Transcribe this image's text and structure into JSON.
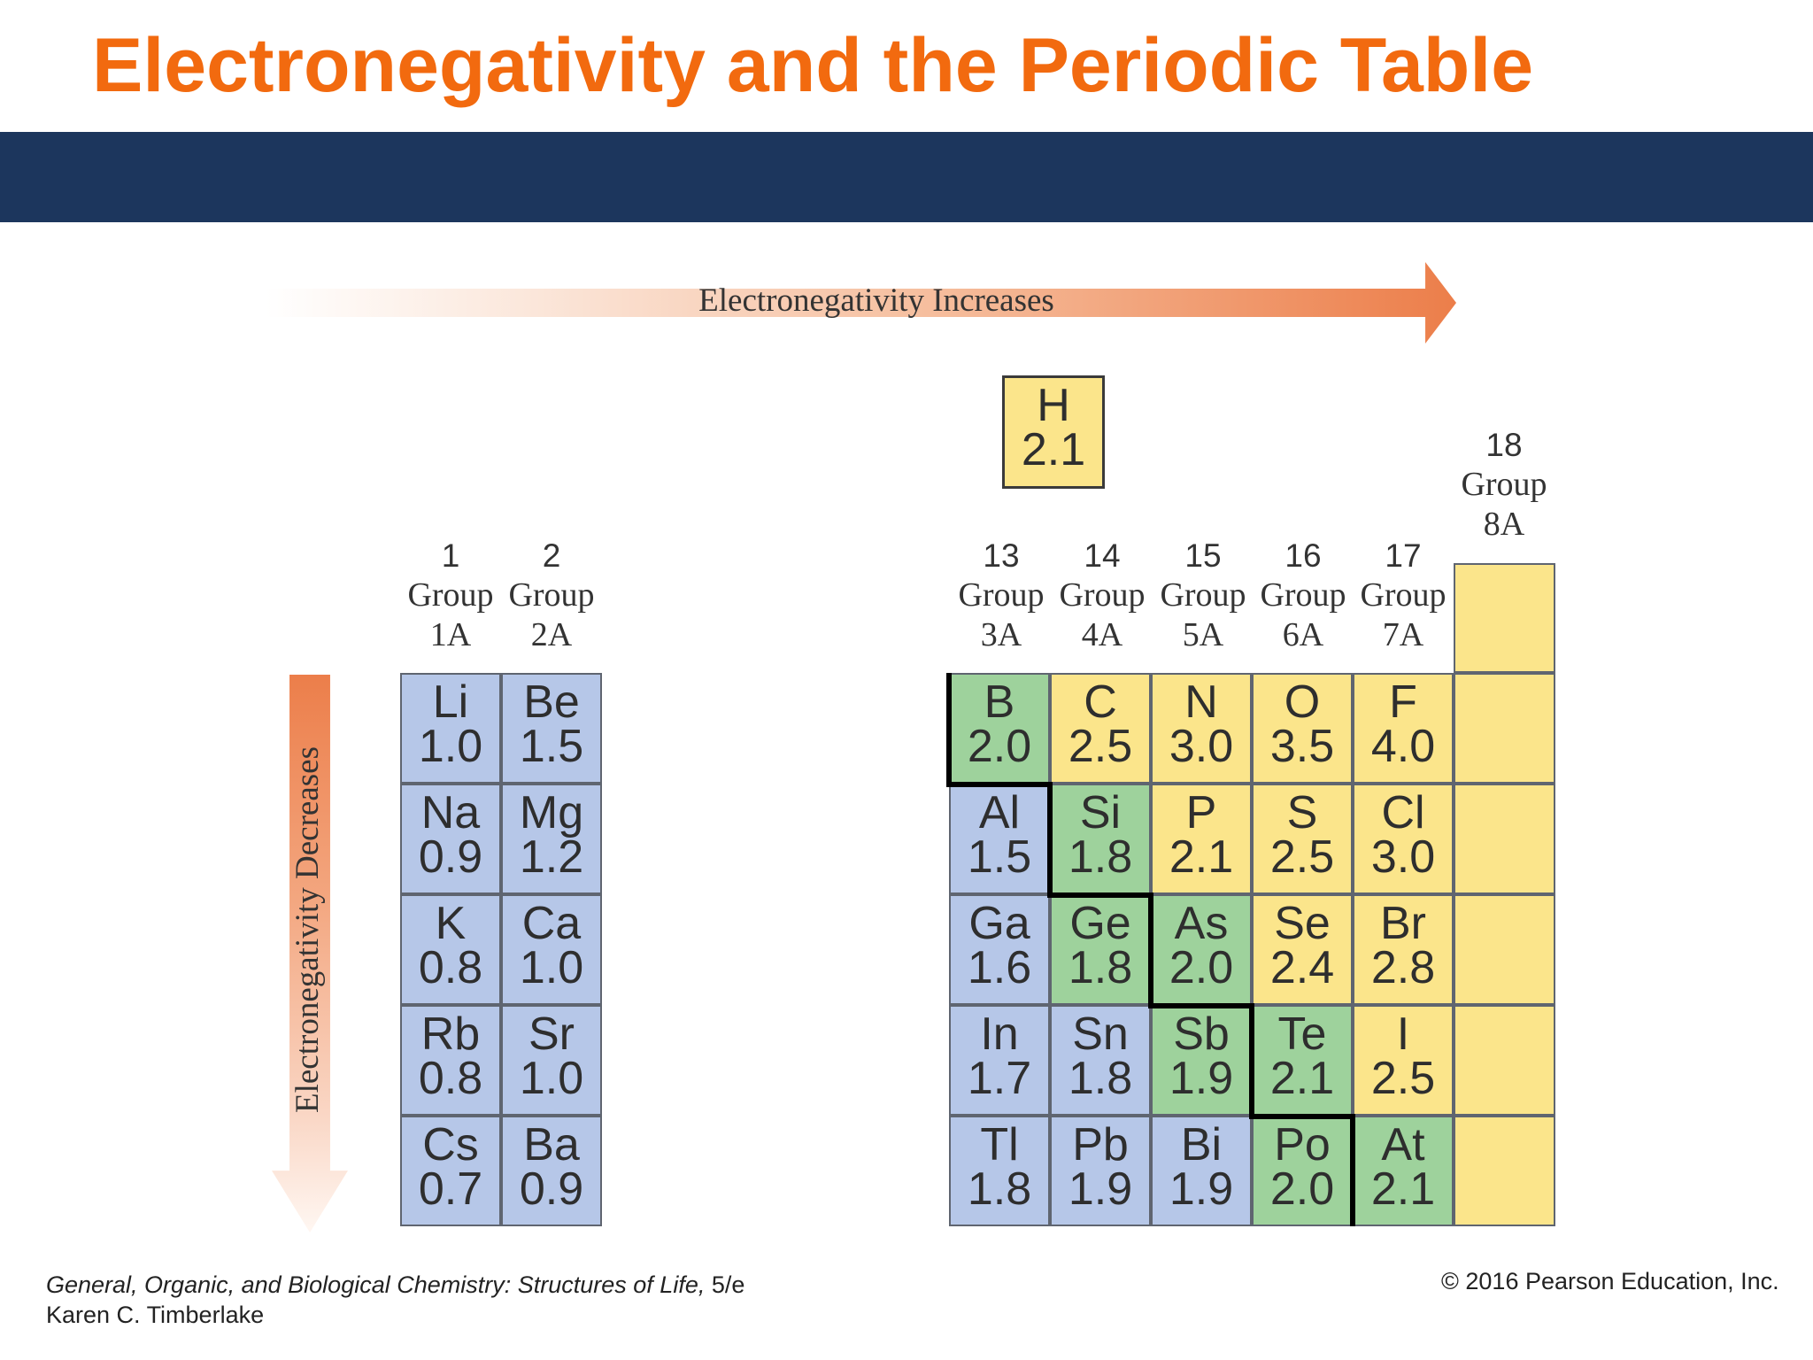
{
  "slide": {
    "title": "Electronegativity and the Periodic Table",
    "accent_color": "#f26a0f",
    "band_color": "#1c365d"
  },
  "arrows": {
    "horizontal_label": "Electronegativity Increases",
    "vertical_label": "Electronegativity Decreases"
  },
  "groups": {
    "g1": {
      "number": "1",
      "word": "Group",
      "label": "1A"
    },
    "g2": {
      "number": "2",
      "word": "Group",
      "label": "2A"
    },
    "g13": {
      "number": "13",
      "word": "Group",
      "label": "3A"
    },
    "g14": {
      "number": "14",
      "word": "Group",
      "label": "4A"
    },
    "g15": {
      "number": "15",
      "word": "Group",
      "label": "5A"
    },
    "g16": {
      "number": "16",
      "word": "Group",
      "label": "6A"
    },
    "g17": {
      "number": "17",
      "word": "Group",
      "label": "7A"
    },
    "g18": {
      "number": "18",
      "word": "Group",
      "label": "8A"
    }
  },
  "cell_colors": {
    "metal": "#b6c7e8",
    "metalloid": "#9ed29c",
    "nonmetal": "#fbe58b"
  },
  "elements": {
    "H": {
      "symbol": "H",
      "en": "2.1",
      "category": "nonmetal"
    },
    "Li": {
      "symbol": "Li",
      "en": "1.0",
      "category": "metal"
    },
    "Be": {
      "symbol": "Be",
      "en": "1.5",
      "category": "metal"
    },
    "Na": {
      "symbol": "Na",
      "en": "0.9",
      "category": "metal"
    },
    "Mg": {
      "symbol": "Mg",
      "en": "1.2",
      "category": "metal"
    },
    "K": {
      "symbol": "K",
      "en": "0.8",
      "category": "metal"
    },
    "Ca": {
      "symbol": "Ca",
      "en": "1.0",
      "category": "metal"
    },
    "Rb": {
      "symbol": "Rb",
      "en": "0.8",
      "category": "metal"
    },
    "Sr": {
      "symbol": "Sr",
      "en": "1.0",
      "category": "metal"
    },
    "Cs": {
      "symbol": "Cs",
      "en": "0.7",
      "category": "metal"
    },
    "Ba": {
      "symbol": "Ba",
      "en": "0.9",
      "category": "metal"
    },
    "B": {
      "symbol": "B",
      "en": "2.0",
      "category": "metalloid"
    },
    "C": {
      "symbol": "C",
      "en": "2.5",
      "category": "nonmetal"
    },
    "N": {
      "symbol": "N",
      "en": "3.0",
      "category": "nonmetal"
    },
    "O": {
      "symbol": "O",
      "en": "3.5",
      "category": "nonmetal"
    },
    "F": {
      "symbol": "F",
      "en": "4.0",
      "category": "nonmetal"
    },
    "Al": {
      "symbol": "Al",
      "en": "1.5",
      "category": "metal"
    },
    "Si": {
      "symbol": "Si",
      "en": "1.8",
      "category": "metalloid"
    },
    "P": {
      "symbol": "P",
      "en": "2.1",
      "category": "nonmetal"
    },
    "S": {
      "symbol": "S",
      "en": "2.5",
      "category": "nonmetal"
    },
    "Cl": {
      "symbol": "Cl",
      "en": "3.0",
      "category": "nonmetal"
    },
    "Ga": {
      "symbol": "Ga",
      "en": "1.6",
      "category": "metal"
    },
    "Ge": {
      "symbol": "Ge",
      "en": "1.8",
      "category": "metalloid"
    },
    "As": {
      "symbol": "As",
      "en": "2.0",
      "category": "metalloid"
    },
    "Se": {
      "symbol": "Se",
      "en": "2.4",
      "category": "nonmetal"
    },
    "Br": {
      "symbol": "Br",
      "en": "2.8",
      "category": "nonmetal"
    },
    "In": {
      "symbol": "In",
      "en": "1.7",
      "category": "metal"
    },
    "Sn": {
      "symbol": "Sn",
      "en": "1.8",
      "category": "metal"
    },
    "Sb": {
      "symbol": "Sb",
      "en": "1.9",
      "category": "metalloid"
    },
    "Te": {
      "symbol": "Te",
      "en": "2.1",
      "category": "metalloid"
    },
    "I": {
      "symbol": "I",
      "en": "2.5",
      "category": "nonmetal"
    },
    "Tl": {
      "symbol": "Tl",
      "en": "1.8",
      "category": "metal"
    },
    "Pb": {
      "symbol": "Pb",
      "en": "1.9",
      "category": "metal"
    },
    "Bi": {
      "symbol": "Bi",
      "en": "1.9",
      "category": "metal"
    },
    "Po": {
      "symbol": "Po",
      "en": "2.0",
      "category": "metalloid"
    },
    "At": {
      "symbol": "At",
      "en": "2.1",
      "category": "metalloid"
    }
  },
  "footer": {
    "book_title": "General, Organic, and Biological Chemistry: Structures of Life,",
    "edition": " 5/e",
    "author": "Karen C. Timberlake",
    "copyright": "© 2016 Pearson Education, Inc."
  }
}
